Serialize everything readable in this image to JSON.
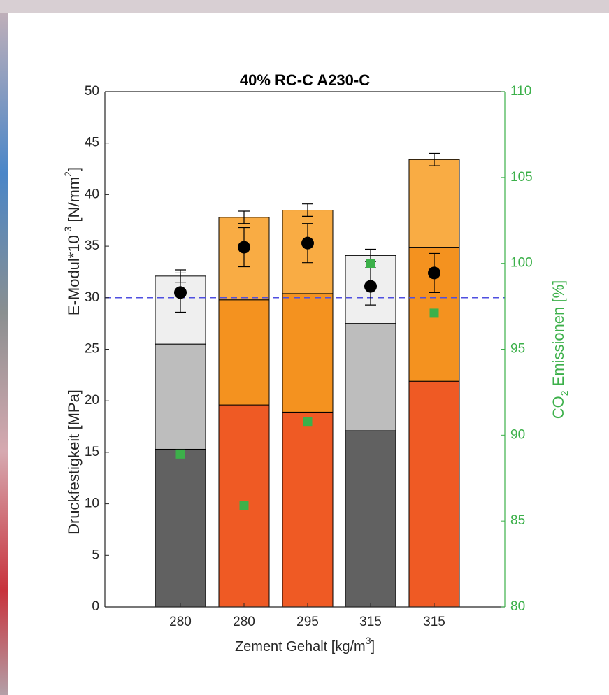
{
  "chart_data": {
    "type": "stacked-bar",
    "title": "40% RC-C A230-C",
    "x_label": [
      "Zement Gehalt [kg/m",
      "3",
      "]"
    ],
    "y_label_lower": "Druckfestigkeit [MPa]",
    "y_label_upper": [
      "E-Modul*10",
      "-3",
      " [N/mm",
      "2",
      "]"
    ],
    "y2_label": [
      "CO",
      "2",
      " Emissionen [%]"
    ],
    "categories": [
      "280",
      "280",
      "295",
      "315",
      "315"
    ],
    "series": [
      {
        "values": [
          15.3,
          19.6,
          18.9,
          17.1,
          21.9
        ],
        "colors": [
          "#616161",
          "#ef5a24",
          "#ef5a24",
          "#616161",
          "#ef5a24"
        ]
      },
      {
        "values": [
          10.2,
          10.2,
          11.5,
          10.4,
          13.0
        ],
        "colors": [
          "#bdbdbd",
          "#f4921f",
          "#f4921f",
          "#bdbdbd",
          "#f4921f"
        ]
      },
      {
        "values": [
          6.6,
          8.0,
          8.1,
          6.6,
          8.5
        ],
        "colors": [
          "#efefef",
          "#f9ac44",
          "#f9ac44",
          "#efefef",
          "#f9ac44"
        ],
        "errors": [
          0.6,
          0.6,
          0.6,
          0.6,
          0.6
        ]
      }
    ],
    "points": {
      "values": [
        30.5,
        34.9,
        35.3,
        31.1,
        32.4
      ],
      "errors": [
        1.9,
        1.9,
        1.9,
        1.8,
        1.9
      ],
      "color": "#000000"
    },
    "co2": {
      "values": [
        88.9,
        85.9,
        90.8,
        100.0,
        97.1
      ],
      "axis": "y2",
      "color": "#3cb04a"
    },
    "hline": {
      "value": 30,
      "color": "#4f4fe0"
    },
    "ylim": [
      0,
      50
    ],
    "yticks": [
      0,
      5,
      10,
      15,
      20,
      25,
      30,
      35,
      40,
      45,
      50
    ],
    "y2lim": [
      80,
      110
    ],
    "y2ticks": [
      80,
      85,
      90,
      95,
      100,
      105,
      110
    ],
    "y2_color": "#3cb04a"
  }
}
